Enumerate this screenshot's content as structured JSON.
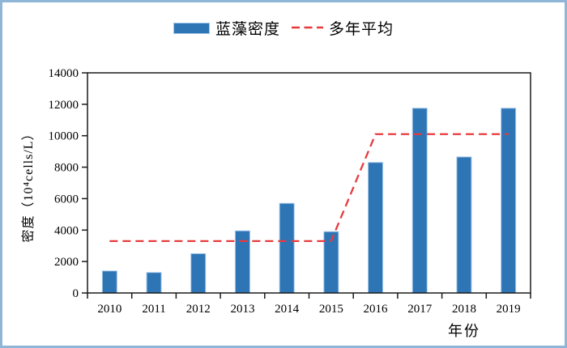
{
  "frame": {
    "border_color": "#8FB6D6",
    "background": "#ffffff"
  },
  "legend": {
    "bar_label": "蓝藻密度",
    "line_label": "多年平均"
  },
  "colors": {
    "bar_fill": "#2E75B6",
    "bar_border": "#A3C6E8",
    "line_red": "#E83A3D",
    "axis": "#1A1A1A",
    "text": "#000000"
  },
  "chart_data": {
    "type": "bar",
    "title": "",
    "categories": [
      "2010",
      "2011",
      "2012",
      "2013",
      "2014",
      "2015",
      "2016",
      "2017",
      "2018",
      "2019"
    ],
    "series": [
      {
        "name": "蓝藻密度",
        "type": "bar",
        "color": "#2E75B6",
        "border_color": "#A3C6E8",
        "values": [
          1400,
          1300,
          2500,
          3950,
          5700,
          3900,
          8300,
          11750,
          8650,
          11750
        ]
      },
      {
        "name": "多年平均",
        "type": "line",
        "color": "#E83A3D",
        "dashed": true,
        "values": [
          3300,
          3300,
          3300,
          3300,
          3300,
          3300,
          10100,
          10100,
          10100,
          10100
        ]
      }
    ],
    "xlabel": "年份",
    "ylabel": "密度（10⁴cells/L）",
    "ylim": [
      0,
      14000
    ],
    "yticks": [
      0,
      2000,
      4000,
      6000,
      8000,
      10000,
      12000,
      14000
    ],
    "grid": false,
    "legend_position": "top-center"
  }
}
